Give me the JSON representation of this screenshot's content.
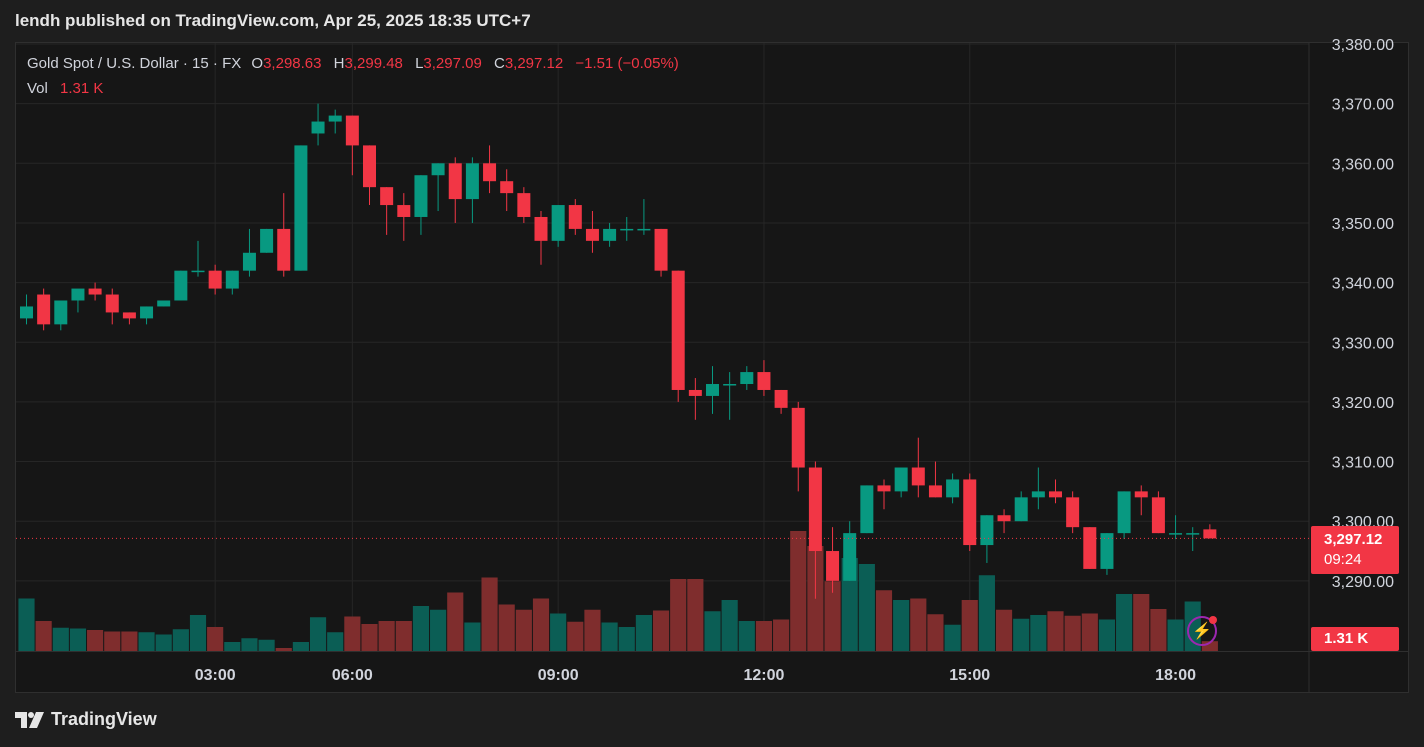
{
  "header": {
    "title": "lendh published on TradingView.com, Apr 25, 2025 18:35 UTC+7"
  },
  "legend": {
    "symbol": "Gold Spot / U.S. Dollar · 15 · FX",
    "o_label": "O",
    "o_value": "3,298.63",
    "h_label": "H",
    "h_value": "3,299.48",
    "l_label": "L",
    "l_value": "3,297.09",
    "c_label": "C",
    "c_value": "3,297.12",
    "change": "−1.51 (−0.05%)",
    "vol_label": "Vol",
    "vol_value": "1.31 K"
  },
  "price_tag": {
    "price": "3,297.12",
    "countdown": "09:24"
  },
  "vol_tag": {
    "value": "1.31 K"
  },
  "footer": {
    "brand": "TradingView"
  },
  "colors": {
    "up": "#089981",
    "down": "#f23645",
    "up_vol": "#0b5e55",
    "down_vol": "#7f2d2d",
    "grid": "#262626"
  },
  "icons": {
    "brand_logo": "tradingview-logo-icon",
    "alert": "lightning-icon"
  },
  "chart_data": {
    "type": "candlestick",
    "ylim": [
      3280,
      3380
    ],
    "yticks": [
      "3,380.00",
      "3,370.00",
      "3,360.00",
      "3,350.00",
      "3,340.00",
      "3,330.00",
      "3,320.00",
      "3,310.00",
      "3,300.00",
      "3,290.00"
    ],
    "xticks": [
      "03:00",
      "06:00",
      "09:00",
      "12:00",
      "15:00",
      "18:00"
    ],
    "xtick_index": [
      11,
      19,
      31,
      43,
      55,
      67
    ],
    "last_price": 3297.12,
    "candles": [
      [
        3334,
        3338,
        3333,
        3336,
        7
      ],
      [
        3338,
        3339,
        3332,
        3333,
        4
      ],
      [
        3333,
        3337,
        3332,
        3337,
        3.1
      ],
      [
        3337,
        3338,
        3335,
        3339,
        3
      ],
      [
        3339,
        3340,
        3337,
        3338,
        2.8
      ],
      [
        3338,
        3339,
        3333,
        3335,
        2.6
      ],
      [
        3335,
        3335,
        3333,
        3334,
        2.6
      ],
      [
        3334,
        3336,
        3333,
        3336,
        2.5
      ],
      [
        3336,
        3337,
        3336,
        3337,
        2.2
      ],
      [
        3337,
        3342,
        3337,
        3342,
        2.9
      ],
      [
        3342,
        3347,
        3341,
        3342,
        4.8
      ],
      [
        3342,
        3343,
        3338,
        3339,
        3.2
      ],
      [
        3339,
        3342,
        3338,
        3342,
        1.2
      ],
      [
        3342,
        3349,
        3341,
        3345,
        1.7
      ],
      [
        3345,
        3349,
        3345,
        3349,
        1.5
      ],
      [
        3349,
        3355,
        3341,
        3342,
        0.4
      ],
      [
        3342,
        3363,
        3342,
        3363,
        1.2
      ],
      [
        3365,
        3370,
        3363,
        3367,
        4.5
      ],
      [
        3367,
        3369,
        3365,
        3368,
        2.5
      ],
      [
        3368,
        3368,
        3358,
        3363,
        4.6
      ],
      [
        3363,
        3363,
        3353,
        3356,
        3.6
      ],
      [
        3356,
        3356,
        3348,
        3353,
        4
      ],
      [
        3353,
        3355,
        3347,
        3351,
        4
      ],
      [
        3351,
        3358,
        3348,
        3358,
        6
      ],
      [
        3358,
        3360,
        3352,
        3360,
        5.5
      ],
      [
        3360,
        3361,
        3350,
        3354,
        7.8
      ],
      [
        3354,
        3361,
        3350,
        3360,
        3.8
      ],
      [
        3360,
        3363,
        3355,
        3357,
        9.8
      ],
      [
        3357,
        3359,
        3352,
        3355,
        6.2
      ],
      [
        3355,
        3356,
        3350,
        3351,
        5.5
      ],
      [
        3351,
        3352,
        3343,
        3347,
        7
      ],
      [
        3347,
        3353,
        3346,
        3353,
        5
      ],
      [
        3353,
        3354,
        3348,
        3349,
        3.9
      ],
      [
        3349,
        3352,
        3345,
        3347,
        5.5
      ],
      [
        3347,
        3350,
        3346,
        3349,
        3.8
      ],
      [
        3349,
        3351,
        3347,
        3349,
        3.2
      ],
      [
        3349,
        3354,
        3348,
        3349,
        4.8
      ],
      [
        3349,
        3349,
        3341,
        3342,
        5.4
      ],
      [
        3342,
        3342,
        3320,
        3322,
        9.6
      ],
      [
        3322,
        3324,
        3317,
        3321,
        9.6
      ],
      [
        3321,
        3326,
        3318,
        3323,
        5.3
      ],
      [
        3323,
        3325,
        3317,
        3323,
        6.8
      ],
      [
        3323,
        3326,
        3322,
        3325,
        4
      ],
      [
        3325,
        3327,
        3321,
        3322,
        4
      ],
      [
        3322,
        3322,
        3318,
        3319,
        4.2
      ],
      [
        3319,
        3320,
        3305,
        3309,
        16
      ],
      [
        3309,
        3310,
        3287,
        3295,
        14
      ],
      [
        3295,
        3299,
        3288,
        3290,
        9.3
      ],
      [
        3290,
        3300,
        3290,
        3298,
        12.4
      ],
      [
        3298,
        3306,
        3298,
        3306,
        11.6
      ],
      [
        3306,
        3307,
        3302,
        3305,
        8.1
      ],
      [
        3305,
        3309,
        3304,
        3309,
        6.8
      ],
      [
        3309,
        3314,
        3304,
        3306,
        7
      ],
      [
        3306,
        3310,
        3304,
        3304,
        4.9
      ],
      [
        3304,
        3308,
        3303,
        3307,
        3.5
      ],
      [
        3307,
        3308,
        3295,
        3296,
        6.8
      ],
      [
        3296,
        3301,
        3293,
        3301,
        10.1
      ],
      [
        3301,
        3302,
        3298,
        3300,
        5.5
      ],
      [
        3300,
        3305,
        3300,
        3304,
        4.3
      ],
      [
        3304,
        3309,
        3302,
        3305,
        4.8
      ],
      [
        3305,
        3307,
        3303,
        3304,
        5.3
      ],
      [
        3304,
        3305,
        3298,
        3299,
        4.7
      ],
      [
        3299,
        3299,
        3292,
        3292,
        5
      ],
      [
        3292,
        3298,
        3291,
        3298,
        4.2
      ],
      [
        3298,
        3305,
        3297,
        3305,
        7.6
      ],
      [
        3305,
        3306,
        3301,
        3304,
        7.6
      ],
      [
        3304,
        3305,
        3298,
        3298,
        5.6
      ],
      [
        3298,
        3301,
        3297,
        3298,
        4.2
      ],
      [
        3298,
        3299,
        3295,
        3298,
        6.6
      ],
      [
        3298.63,
        3299.48,
        3297.09,
        3297.12,
        1.31
      ]
    ]
  }
}
